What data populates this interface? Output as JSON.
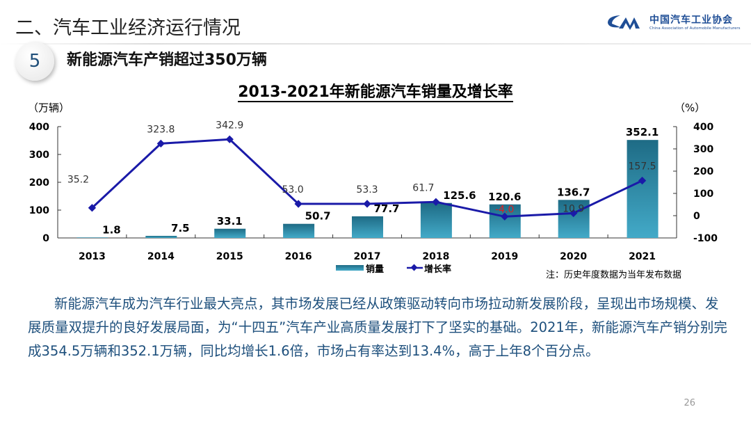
{
  "header": {
    "section_title": "二、汽车工业经济运行情况",
    "number": "5",
    "subtitle": "新能源汽车产销超过350万辆",
    "logo": {
      "name_cn": "中国汽车工业协会",
      "name_en": "China Association of Automobile Manufacturers"
    }
  },
  "chart_data": {
    "type": "bar+line",
    "title": "2013-2021年新能源汽车销量及增长率",
    "categories": [
      "2013",
      "2014",
      "2015",
      "2016",
      "2017",
      "2018",
      "2019",
      "2020",
      "2021"
    ],
    "y_left": {
      "label": "（万辆）",
      "ylim": [
        0,
        400
      ],
      "ticks": [
        "400",
        "300",
        "200",
        "100",
        "0"
      ]
    },
    "y_right": {
      "label": "（%）",
      "ylim": [
        -100,
        400
      ],
      "ticks": [
        "400",
        "300",
        "200",
        "100",
        "0",
        "-100"
      ]
    },
    "series": [
      {
        "name": "销量",
        "type": "bar",
        "axis": "left",
        "color": "#2f8fae",
        "values": [
          1.8,
          7.5,
          33.1,
          50.7,
          77.7,
          125.6,
          120.6,
          136.7,
          352.1
        ],
        "labels": [
          "1.8",
          "7.5",
          "33.1",
          "50.7",
          "77.7",
          "125.6",
          "120.6",
          "136.7",
          "352.1"
        ]
      },
      {
        "name": "增长率",
        "type": "line",
        "axis": "right",
        "color": "#1a1aa8",
        "values": [
          35.2,
          323.8,
          342.9,
          53.0,
          53.3,
          61.7,
          -4.0,
          10.9,
          157.5
        ],
        "labels": [
          "35.2",
          "323.8",
          "342.9",
          "53.0",
          "53.3",
          "61.7",
          "-4.0",
          "10.9",
          "157.5"
        ]
      }
    ],
    "legend": "bottom",
    "note": "注：历史年度数据为当年发布数据",
    "negative_label_color": "#e02020"
  },
  "body": {
    "paragraph": "新能源汽车成为汽车行业最大亮点，其市场发展已经从政策驱动转向市场拉动新发展阶段，呈现出市场规模、发展质量双提升的良好发展局面，为“十四五”汽车产业高质量发展打下了坚实的基础。2021年，新能源汽车产销分别完成354.5万辆和352.1万辆，同比均增长1.6倍，市场占有率达到13.4%，高于上年8个百分点。"
  },
  "page_number": "26"
}
